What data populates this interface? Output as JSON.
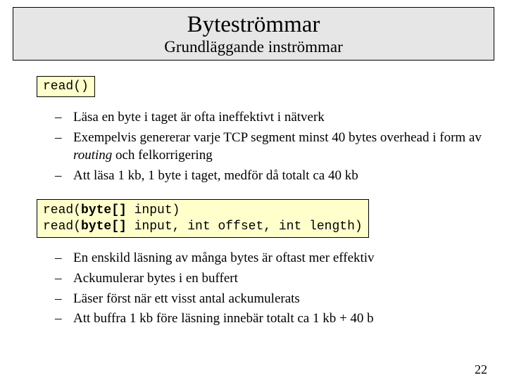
{
  "header": {
    "title": "Byteströmmar",
    "subtitle": "Grundläggande inströmmar"
  },
  "codebox1": {
    "text": "read()"
  },
  "bullets1": [
    {
      "pre": "Läsa en byte i taget är ofta ineffektivt i nätverk"
    },
    {
      "pre": "Exempelvis genererar varje TCP segment minst 40 bytes overhead i form av ",
      "italic": "routing",
      "post": " och felkorrigering"
    },
    {
      "pre": "Att läsa 1 kb, 1 byte i taget, medför då totalt ca 40 kb"
    }
  ],
  "codebox2": {
    "l1_a": "read(",
    "l1_b": "byte[]",
    "l1_c": " input)",
    "l2_a": "read(",
    "l2_b": "byte[]",
    "l2_c": " input, int offset, int length)"
  },
  "bullets2": [
    {
      "pre": "En enskild läsning av många bytes är oftast mer effektiv"
    },
    {
      "pre": "Ackumulerar bytes i en buffert"
    },
    {
      "pre": "Läser först när ett visst antal ackumulerats"
    },
    {
      "pre": "Att buffra 1 kb före läsning innebär totalt ca 1 kb + 40 b"
    }
  ],
  "pageNumber": "22",
  "colors": {
    "headerBg": "#e6e6e6",
    "codeBg": "#ffffcc",
    "border": "#000000",
    "pageBg": "#ffffff"
  }
}
